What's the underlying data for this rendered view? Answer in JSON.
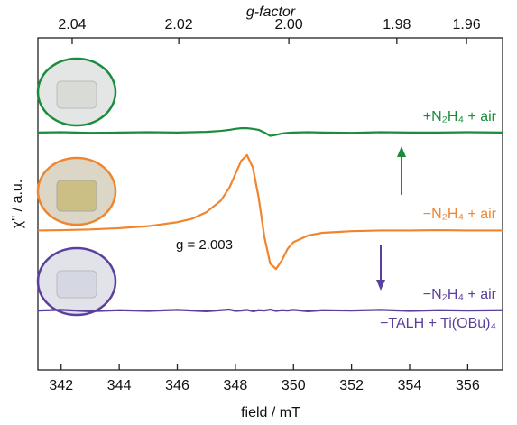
{
  "chart_data": {
    "type": "line",
    "xlabel": "field / mT",
    "ylabel": "χ'' / a.u.",
    "x2label": "g-factor",
    "x": [
      341.2,
      342,
      343,
      344,
      345,
      346,
      346.5,
      347,
      347.5,
      347.8,
      348,
      348.2,
      348.4,
      348.6,
      348.8,
      349,
      349.2,
      349.4,
      349.6,
      349.8,
      350,
      350.5,
      351,
      352,
      353,
      354,
      355,
      356,
      357.2
    ],
    "series": [
      {
        "name": "+N₂H₄ + air",
        "color": "#1a8c3c",
        "values": [
          71.5,
          71.6,
          71.4,
          71.5,
          71.6,
          71.5,
          71.6,
          71.7,
          72.0,
          72.3,
          72.6,
          72.8,
          72.8,
          72.6,
          72.3,
          71.5,
          70.5,
          70.8,
          71.2,
          71.4,
          71.5,
          71.6,
          71.5,
          71.4,
          71.6,
          71.5,
          71.5,
          71.6,
          71.5
        ]
      },
      {
        "name": "−N₂H₄ + air",
        "color": "#f0852d",
        "values": [
          42.0,
          42.1,
          42.3,
          42.7,
          43.3,
          44.5,
          45.5,
          47.5,
          51,
          55,
          59,
          63,
          64.7,
          61,
          52,
          40,
          32,
          30.4,
          33,
          36.5,
          38.5,
          40.5,
          41.3,
          41.8,
          42.0,
          42.0,
          42.1,
          42.0,
          42.0
        ]
      },
      {
        "name": "−N₂H₄ + air",
        "color": "#5b3f9c",
        "values": [
          17.9,
          18.1,
          17.7,
          18.0,
          17.8,
          18.1,
          17.9,
          17.7,
          18.0,
          18.2,
          17.8,
          17.9,
          18.1,
          17.7,
          18.0,
          17.9,
          18.2,
          17.8,
          18.0,
          17.9,
          18.1,
          17.7,
          18.0,
          17.9,
          18.1,
          17.8,
          18.0,
          17.9,
          18.0
        ]
      }
    ],
    "annotations": [
      "−TALH + Ti(OBu)₄",
      "g = 2.003"
    ],
    "xlim": [
      341.2,
      357.2
    ],
    "ylim": [
      0,
      100
    ],
    "xticks": [
      342,
      344,
      346,
      348,
      350,
      352,
      354,
      356
    ],
    "x2ticks": [
      {
        "value": 342.38,
        "label": "2.04"
      },
      {
        "value": 346.05,
        "label": "2.02"
      },
      {
        "value": 349.84,
        "label": "2.00"
      },
      {
        "value": 353.56,
        "label": "1.98"
      },
      {
        "value": 355.96,
        "label": "1.96"
      }
    ]
  }
}
